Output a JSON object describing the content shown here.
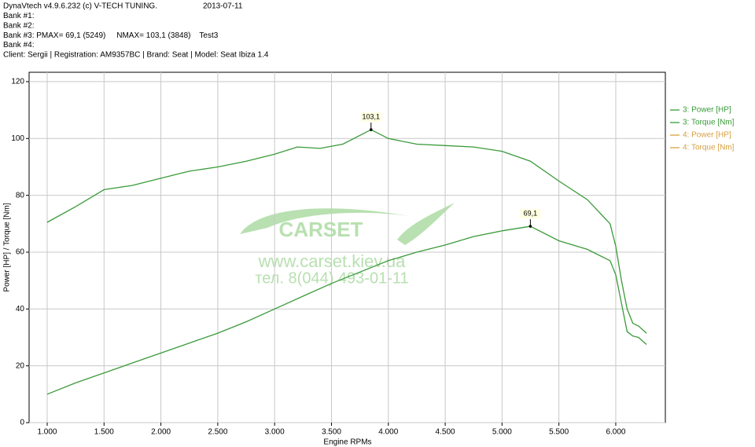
{
  "header": {
    "lines": [
      "DynaVtech v4.9.6.232 (c) V-TECH TUNING.",
      "Bank #1:",
      "Bank #2:",
      "Bank #3: PMAX= 69,1 (5249)     NMAX= 103,1 (3848)    Test3",
      "Bank #4:",
      "Client: Sergii | Registration: AM9357BC | Brand: Seat | Model: Seat Ibiza 1.4"
    ],
    "date": "2013-07-11"
  },
  "watermark": {
    "brand": "CARSET",
    "url": "www.carset.kiev.ua",
    "phone": "тел. 8(044) 493-01-11"
  },
  "chart_data": {
    "type": "line",
    "xlabel": "Engine RPMs",
    "ylabel": "Power [HP] / Torque [Nm]",
    "xlim": [
      841,
      6436
    ],
    "ylim": [
      0,
      123.3
    ],
    "xticks": [
      {
        "value": 1000,
        "label": "1.000"
      },
      {
        "value": 1500,
        "label": "1.500"
      },
      {
        "value": 2000,
        "label": "2.000"
      },
      {
        "value": 2500,
        "label": "2.500"
      },
      {
        "value": 3000,
        "label": "3.000"
      },
      {
        "value": 3500,
        "label": "3.500"
      },
      {
        "value": 4000,
        "label": "4.000"
      },
      {
        "value": 4500,
        "label": "4.500"
      },
      {
        "value": 5000,
        "label": "5.000"
      },
      {
        "value": 5500,
        "label": "5.500"
      },
      {
        "value": 6000,
        "label": "6.000"
      }
    ],
    "yticks": [
      0,
      20,
      40,
      60,
      80,
      100,
      120
    ],
    "grid": true,
    "series": [
      {
        "name": "3: Power [HP]",
        "color": "#3a9a3a",
        "x": [
          1000,
          1250,
          1500,
          1750,
          2000,
          2250,
          2500,
          2750,
          3000,
          3250,
          3500,
          3750,
          4000,
          4250,
          4500,
          4750,
          5000,
          5249,
          5500,
          5750,
          5950,
          6000,
          6050,
          6100,
          6150,
          6200,
          6270
        ],
        "values": [
          10,
          14,
          17.5,
          21,
          24.5,
          28,
          31.5,
          35.5,
          40,
          44.5,
          49,
          53,
          57,
          60,
          62.5,
          65.5,
          67.5,
          69.1,
          64,
          61,
          57,
          52,
          42,
          32,
          30.5,
          30,
          27.5
        ]
      },
      {
        "name": "3: Torque [Nm]",
        "color": "#3a9a3a",
        "x": [
          1000,
          1250,
          1500,
          1750,
          2000,
          2250,
          2500,
          2750,
          3000,
          3200,
          3400,
          3600,
          3848,
          4000,
          4250,
          4500,
          4750,
          5000,
          5250,
          5500,
          5750,
          5950,
          6000,
          6050,
          6100,
          6150,
          6200,
          6270
        ],
        "values": [
          70.5,
          76,
          82,
          83.5,
          86,
          88.5,
          90,
          92,
          94.5,
          97,
          96.5,
          98,
          103.1,
          100,
          98,
          97.5,
          97,
          95.5,
          92,
          85,
          78.5,
          70,
          62,
          50,
          40,
          35,
          34,
          31.5
        ]
      },
      {
        "name": "4: Power [HP]",
        "color": "#d8a040",
        "x": [],
        "values": []
      },
      {
        "name": "4: Torque [Nm]",
        "color": "#d8a040",
        "x": [],
        "values": []
      }
    ],
    "annotations": [
      {
        "label": "103,1",
        "x": 3848,
        "y": 103.1
      },
      {
        "label": "69,1",
        "x": 5249,
        "y": 69.1
      }
    ]
  }
}
